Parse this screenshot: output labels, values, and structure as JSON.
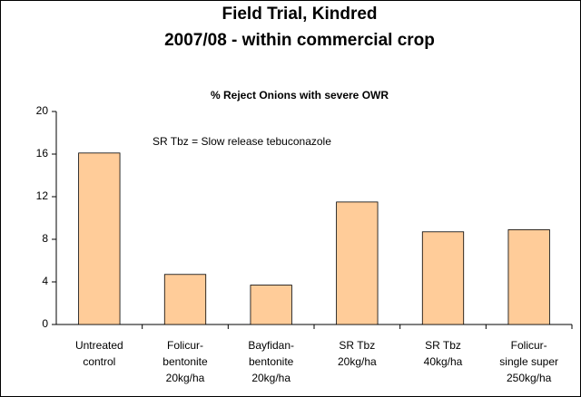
{
  "chart_data": {
    "type": "bar",
    "heading": [
      "Field Trial, Kindred",
      "2007/08 - within commercial crop"
    ],
    "title": "% Reject Onions with severe OWR",
    "annotation": "SR Tbz  = Slow release tebuconazole",
    "categories": [
      [
        "Untreated",
        "control"
      ],
      [
        "Folicur-",
        "bentonite",
        "20kg/ha"
      ],
      [
        "Bayfidan-",
        "bentonite",
        "20kg/ha"
      ],
      [
        "SR Tbz",
        "20kg/ha"
      ],
      [
        "SR Tbz",
        "40kg/ha"
      ],
      [
        "Folicur-",
        "single super",
        "250kg/ha"
      ]
    ],
    "values": [
      16.1,
      4.7,
      3.7,
      11.5,
      8.7,
      8.9
    ],
    "color": "#ffcc99",
    "heading_color": "#2e8b3a",
    "ylim": [
      0,
      20
    ],
    "yticks": [
      0,
      4,
      8,
      12,
      16,
      20
    ],
    "grid": false
  }
}
